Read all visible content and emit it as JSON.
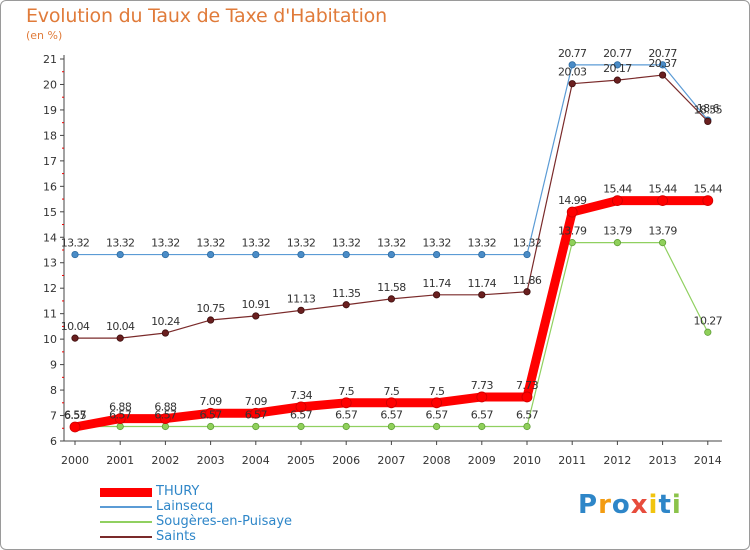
{
  "chart_data": {
    "type": "line",
    "title": "Evolution du Taux de Taxe d'Habitation",
    "unit_label": "(en %)",
    "x": [
      "2000",
      "2001",
      "2002",
      "2003",
      "2004",
      "2005",
      "2006",
      "2007",
      "2008",
      "2009",
      "2010",
      "2011",
      "2012",
      "2013",
      "2014"
    ],
    "ylim": [
      6,
      21
    ],
    "yticks": [
      6,
      7,
      8,
      9,
      10,
      11,
      12,
      13,
      14,
      15,
      16,
      17,
      18,
      19,
      20,
      21
    ],
    "grid": false,
    "legend_position": "bottom-left",
    "series": [
      {
        "name": "THURY",
        "color": "#ff0000",
        "values": [
          6.55,
          6.88,
          6.88,
          7.09,
          7.09,
          7.34,
          7.5,
          7.5,
          7.5,
          7.73,
          7.73,
          14.99,
          15.44,
          15.44,
          15.44
        ],
        "labels": [
          "6.55",
          "6.88",
          "6.88",
          "7.09",
          "7.09",
          "7.34",
          "7.5",
          "7.5",
          "7.5",
          "7.73",
          "7.73",
          "14.99",
          "15.44",
          "15.44",
          "15.44"
        ]
      },
      {
        "name": "Lainsecq",
        "color": "#5b9bd5",
        "values": [
          13.32,
          13.32,
          13.32,
          13.32,
          13.32,
          13.32,
          13.32,
          13.32,
          13.32,
          13.32,
          13.32,
          20.77,
          20.77,
          20.77,
          18.6
        ],
        "labels": [
          "13.32",
          "13.32",
          "13.32",
          "13.32",
          "13.32",
          "13.32",
          "13.32",
          "13.32",
          "13.32",
          "13.32",
          "13.32",
          "20.77",
          "20.77",
          "20.77",
          "18.6"
        ]
      },
      {
        "name": "Sougères-en-Puisaye",
        "color": "#90d060",
        "values": [
          6.57,
          6.57,
          6.57,
          6.57,
          6.57,
          6.57,
          6.57,
          6.57,
          6.57,
          6.57,
          6.57,
          13.79,
          13.79,
          13.79,
          10.27
        ],
        "labels": [
          "6.57",
          "6.57",
          "6.57",
          "6.57",
          "6.57",
          "6.57",
          "6.57",
          "6.57",
          "6.57",
          "6.57",
          "6.57",
          "13.79",
          "13.79",
          "13.79",
          "10.27"
        ]
      },
      {
        "name": "Saints",
        "color": "#7a2a2a",
        "values": [
          10.04,
          10.04,
          10.24,
          10.75,
          10.91,
          11.13,
          11.35,
          11.58,
          11.74,
          11.74,
          11.86,
          20.03,
          20.17,
          20.37,
          18.55
        ],
        "labels": [
          "10.04",
          "10.04",
          "10.24",
          "10.75",
          "10.91",
          "11.13",
          "11.35",
          "11.58",
          "11.74",
          "11.74",
          "11.86",
          "20.03",
          "20.17",
          "20.37",
          "18.55"
        ]
      }
    ]
  },
  "logo": {
    "text": "Proxiti",
    "colors": [
      "#2e86c8",
      "#f39c12",
      "#2e86c8",
      "#e74c3c",
      "#f1c40f",
      "#2e86c8",
      "#8bc34a"
    ]
  }
}
